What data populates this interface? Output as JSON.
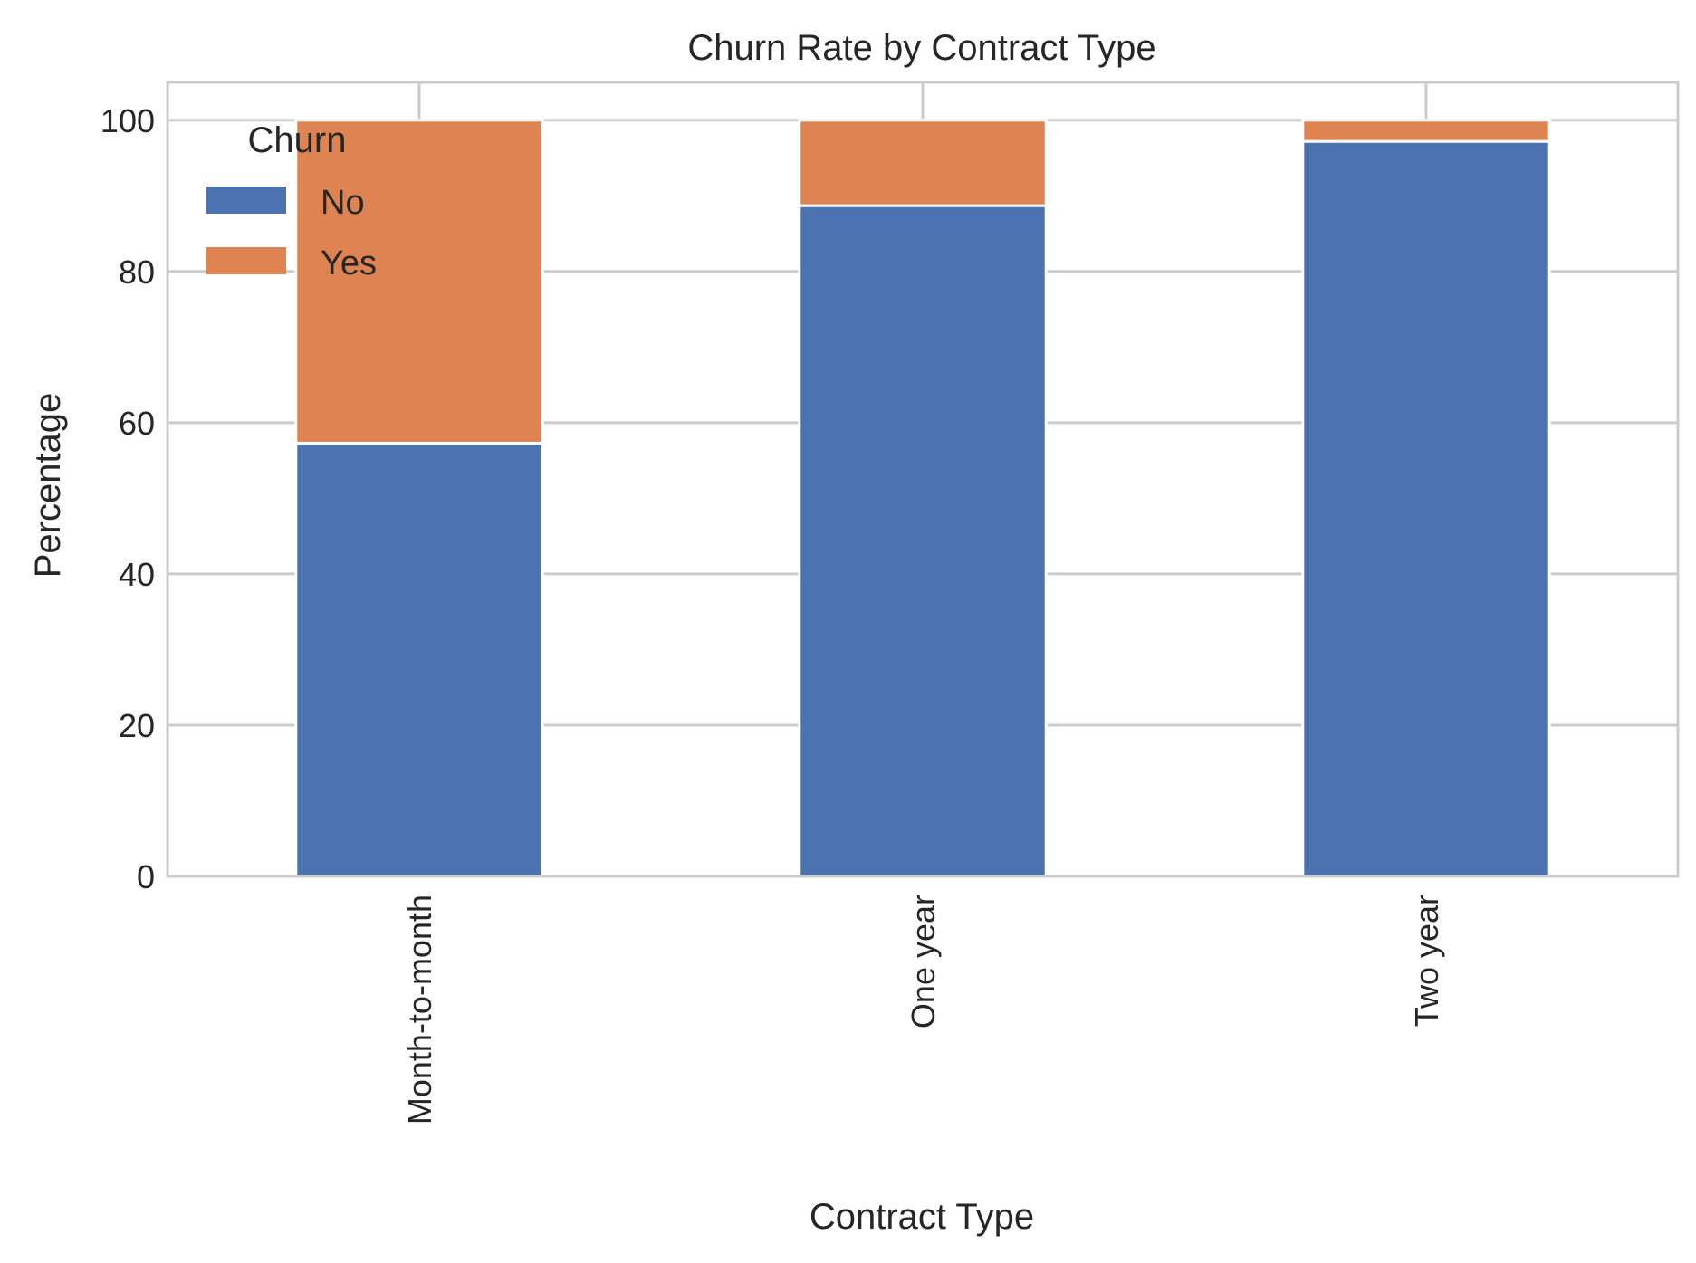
{
  "chart_data": {
    "type": "bar",
    "stacked": true,
    "title": "Churn Rate by Contract Type",
    "xlabel": "Contract Type",
    "ylabel": "Percentage",
    "categories": [
      "Month-to-month",
      "One year",
      "Two year"
    ],
    "series": [
      {
        "name": "No",
        "values": [
          57.3,
          88.7,
          97.2
        ],
        "color": "#4c72b0"
      },
      {
        "name": "Yes",
        "values": [
          42.7,
          11.3,
          2.8
        ],
        "color": "#dd8452"
      }
    ],
    "ylim": [
      0,
      105
    ],
    "yticks": [
      "0",
      "20",
      "40",
      "60",
      "80",
      "100"
    ],
    "grid": true,
    "legend": {
      "title": "Churn",
      "placement": "top-left"
    }
  }
}
